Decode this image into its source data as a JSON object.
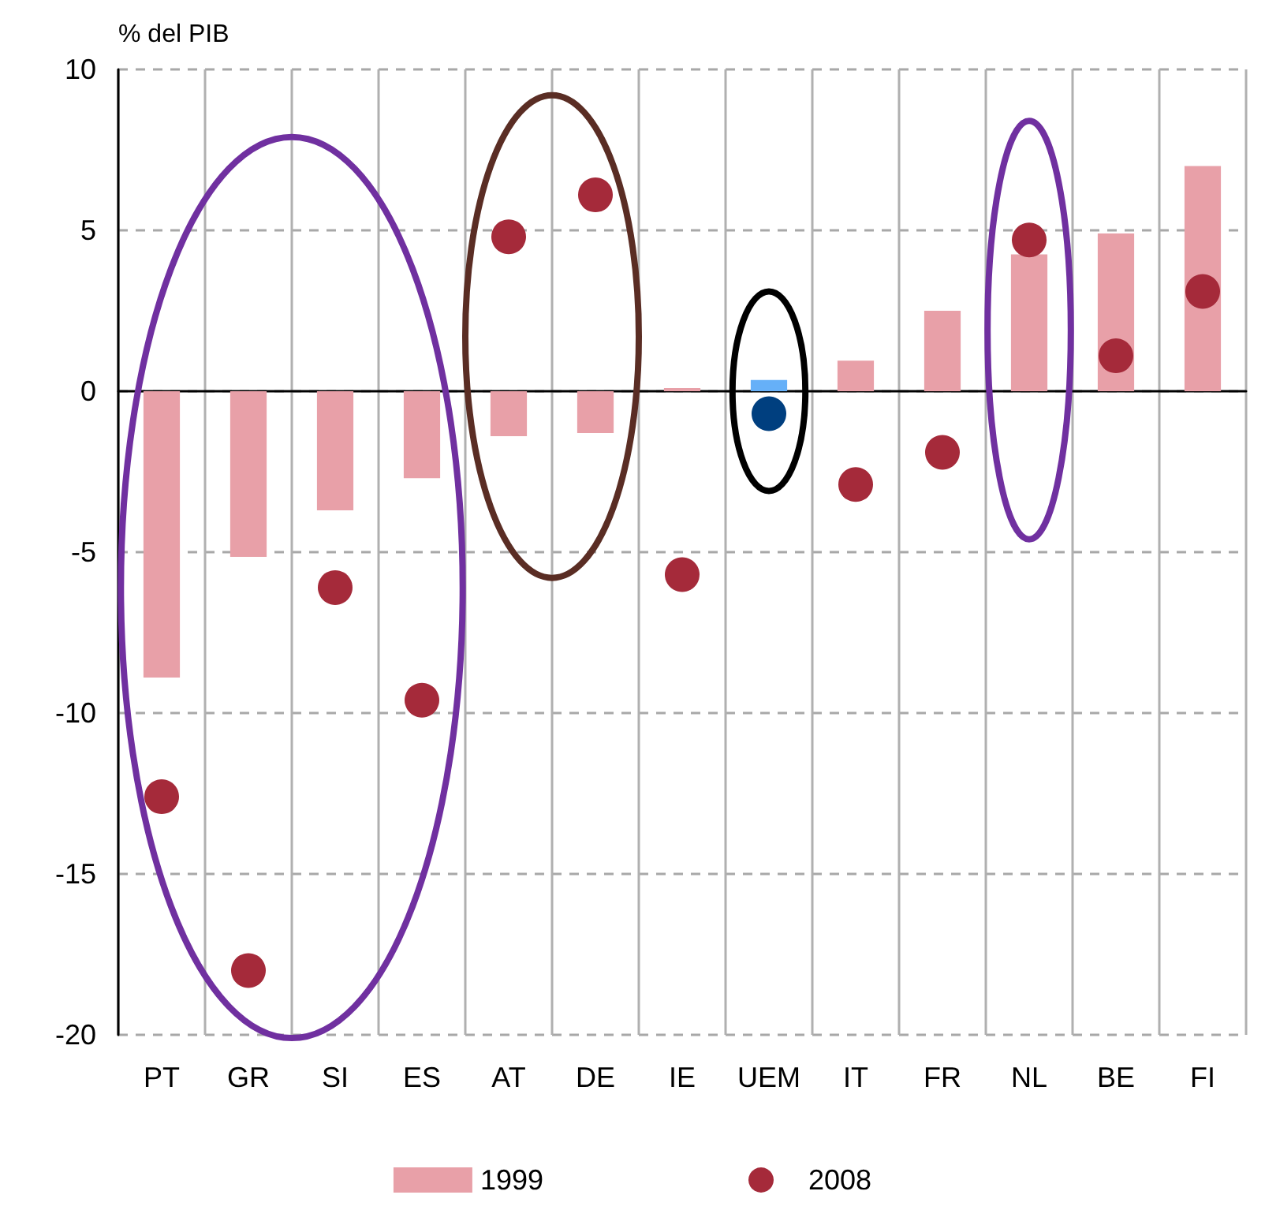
{
  "chart_data": {
    "type": "bar",
    "ylabel": "% del PIB",
    "categories": [
      "PT",
      "GR",
      "SI",
      "ES",
      "AT",
      "DE",
      "IE",
      "UEM",
      "IT",
      "FR",
      "NL",
      "BE",
      "FI"
    ],
    "series": [
      {
        "name": "1999",
        "color": "#e8a0a8",
        "colors": [
          "#e8a0a8",
          "#e8a0a8",
          "#e8a0a8",
          "#e8a0a8",
          "#e8a0a8",
          "#e8a0a8",
          "#e8a0a8",
          "#66b0f8",
          "#e8a0a8",
          "#e8a0a8",
          "#e8a0a8",
          "#e8a0a8",
          "#e8a0a8"
        ],
        "values": [
          -8.9,
          -5.15,
          -3.7,
          -2.7,
          -1.4,
          -1.3,
          0.1,
          0.35,
          0.95,
          2.5,
          4.25,
          4.9,
          7.0
        ]
      },
      {
        "name": "2008",
        "type": "scatter",
        "color": "#a52a3a",
        "colors": [
          "#a52a3a",
          "#a52a3a",
          "#a52a3a",
          "#a52a3a",
          "#a52a3a",
          "#a52a3a",
          "#a52a3a",
          "#003f7f",
          "#a52a3a",
          "#a52a3a",
          "#a52a3a",
          "#a52a3a",
          "#a52a3a"
        ],
        "values": [
          -12.6,
          -18.0,
          -6.1,
          -9.6,
          4.8,
          6.1,
          -5.7,
          -0.7,
          -2.9,
          -1.9,
          4.7,
          1.1,
          3.1
        ]
      }
    ],
    "ylim": [
      -20,
      10
    ],
    "yticks": [
      -20,
      -15,
      -10,
      -5,
      0,
      5,
      10
    ],
    "grid": true,
    "legend": "bottom",
    "marker": "circle"
  }
}
